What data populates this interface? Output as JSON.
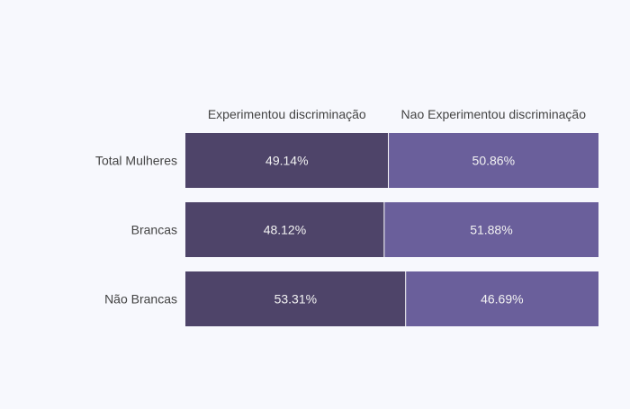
{
  "chart_data": {
    "type": "bar",
    "orientation": "horizontal",
    "stacked": "percent",
    "categories": [
      "Total Mulheres",
      "Brancas",
      "Não Brancas"
    ],
    "series": [
      {
        "name": "Experimentou discriminação",
        "values": [
          49.14,
          48.12,
          53.31
        ],
        "labels": [
          "49.14%",
          "48.12%",
          "53.31%"
        ],
        "color": "#4e4469"
      },
      {
        "name": "Nao Experimentou discriminação",
        "values": [
          50.86,
          51.88,
          46.69
        ],
        "labels": [
          "50.86%",
          "51.88%",
          "46.69%"
        ],
        "color": "#6a5f9b"
      }
    ],
    "xlim": [
      0,
      100
    ],
    "grid": false,
    "legend": "top",
    "colors": {
      "background": "#f7f8fd",
      "text": "#444444",
      "bar_label": "#f2f2f2",
      "separator": "#ffffff"
    }
  }
}
